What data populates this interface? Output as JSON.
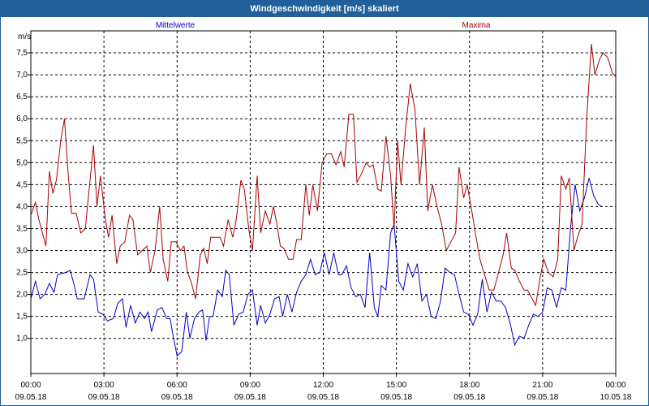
{
  "window": {
    "title": "Windgeschwindigkeit [m/s] skaliert"
  },
  "chart_data": {
    "type": "line",
    "title": "Windgeschwindigkeit [m/s] skaliert",
    "ylabel": "m/s",
    "xlabel": "",
    "ylim": [
      0.2,
      8.0
    ],
    "xlim": [
      0,
      24
    ],
    "grid": true,
    "legend": "top",
    "y_ticks": [
      "1,0",
      "1,5",
      "2,0",
      "2,5",
      "3,0",
      "3,5",
      "4,0",
      "4,5",
      "5,0",
      "5,5",
      "6,0",
      "6,5",
      "7,0",
      "7,5"
    ],
    "x_ticks": [
      {
        "time": "00:00",
        "date": "09.05.18"
      },
      {
        "time": "03:00",
        "date": "09.05.18"
      },
      {
        "time": "06:00",
        "date": "09.05.18"
      },
      {
        "time": "09:00",
        "date": "09.05.18"
      },
      {
        "time": "12:00",
        "date": "09.05.18"
      },
      {
        "time": "15:00",
        "date": "09.05.18"
      },
      {
        "time": "18:00",
        "date": "09.05.18"
      },
      {
        "time": "21:00",
        "date": "09.05.18"
      },
      {
        "time": "00:00",
        "date": "10.05.18"
      }
    ],
    "series": [
      {
        "name": "Mittelwerte",
        "color": "#0000cc",
        "points": [
          [
            0,
            1.9
          ],
          [
            0.2,
            2.3
          ],
          [
            0.4,
            1.9
          ],
          [
            0.6,
            2.0
          ],
          [
            0.8,
            2.25
          ],
          [
            1.0,
            2.05
          ],
          [
            1.15,
            2.45
          ],
          [
            1.5,
            2.5
          ],
          [
            1.7,
            2.55
          ],
          [
            1.85,
            2.25
          ],
          [
            2.0,
            1.9
          ],
          [
            2.3,
            1.9
          ],
          [
            2.55,
            2.45
          ],
          [
            2.7,
            2.35
          ],
          [
            2.9,
            1.6
          ],
          [
            3.1,
            1.55
          ],
          [
            3.3,
            1.4
          ],
          [
            3.55,
            1.45
          ],
          [
            3.75,
            1.8
          ],
          [
            3.95,
            1.9
          ],
          [
            4.1,
            1.25
          ],
          [
            4.3,
            1.75
          ],
          [
            4.5,
            1.35
          ],
          [
            4.7,
            1.6
          ],
          [
            4.9,
            1.45
          ],
          [
            5.05,
            1.6
          ],
          [
            5.2,
            1.15
          ],
          [
            5.45,
            1.65
          ],
          [
            5.65,
            1.7
          ],
          [
            5.85,
            1.45
          ],
          [
            6.0,
            1.45
          ],
          [
            6.15,
            1.0
          ],
          [
            6.3,
            0.6
          ],
          [
            6.5,
            0.7
          ],
          [
            6.7,
            1.6
          ],
          [
            6.85,
            1.0
          ],
          [
            7.05,
            1.45
          ],
          [
            7.25,
            1.6
          ],
          [
            7.4,
            1.65
          ],
          [
            7.55,
            0.95
          ],
          [
            7.7,
            1.5
          ],
          [
            7.85,
            1.5
          ],
          [
            8.05,
            2.1
          ],
          [
            8.25,
            1.95
          ],
          [
            8.4,
            2.55
          ],
          [
            8.55,
            2.45
          ],
          [
            8.75,
            1.3
          ],
          [
            8.95,
            1.55
          ],
          [
            9.15,
            1.6
          ],
          [
            9.35,
            2.0
          ],
          [
            9.55,
            2.1
          ],
          [
            9.75,
            1.3
          ],
          [
            9.9,
            1.75
          ],
          [
            10.1,
            1.35
          ],
          [
            10.3,
            1.55
          ],
          [
            10.5,
            1.9
          ],
          [
            10.7,
            1.95
          ],
          [
            10.85,
            1.5
          ],
          [
            11.05,
            2.0
          ],
          [
            11.25,
            1.6
          ],
          [
            11.45,
            2.05
          ],
          [
            11.65,
            2.3
          ],
          [
            11.85,
            2.45
          ],
          [
            12.05,
            2.8
          ],
          [
            12.25,
            2.45
          ],
          [
            12.45,
            2.5
          ],
          [
            12.65,
            2.95
          ],
          [
            12.85,
            2.45
          ],
          [
            13.05,
            2.95
          ],
          [
            13.25,
            2.45
          ],
          [
            13.4,
            2.45
          ],
          [
            13.6,
            2.65
          ],
          [
            13.8,
            2.15
          ],
          [
            14.0,
            1.95
          ],
          [
            14.2,
            2.0
          ],
          [
            14.4,
            1.7
          ],
          [
            14.6,
            2.95
          ],
          [
            14.8,
            1.7
          ],
          [
            14.95,
            1.5
          ],
          [
            15.1,
            2.2
          ],
          [
            15.3,
            2.1
          ],
          [
            15.5,
            3.4
          ],
          [
            15.65,
            3.6
          ],
          [
            15.85,
            2.3
          ],
          [
            16.05,
            2.1
          ],
          [
            16.25,
            2.7
          ],
          [
            16.45,
            2.4
          ],
          [
            16.65,
            2.7
          ],
          [
            16.85,
            1.85
          ],
          [
            17.05,
            2.0
          ],
          [
            17.25,
            1.5
          ],
          [
            17.45,
            1.45
          ],
          [
            17.65,
            1.85
          ],
          [
            17.85,
            2.6
          ],
          [
            18.05,
            2.5
          ],
          [
            18.25,
            2.45
          ],
          [
            18.45,
            2.0
          ],
          [
            18.65,
            1.6
          ],
          [
            18.85,
            1.55
          ],
          [
            19.05,
            1.3
          ],
          [
            19.25,
            1.55
          ],
          [
            19.45,
            2.35
          ],
          [
            19.65,
            1.6
          ],
          [
            19.85,
            2.05
          ],
          [
            20.05,
            1.85
          ],
          [
            20.25,
            1.85
          ],
          [
            20.45,
            1.7
          ],
          [
            20.65,
            1.35
          ],
          [
            20.85,
            0.85
          ],
          [
            21.05,
            1.05
          ],
          [
            21.25,
            1.0
          ],
          [
            21.45,
            1.3
          ],
          [
            21.65,
            1.55
          ],
          [
            21.85,
            1.5
          ],
          [
            22.05,
            1.6
          ],
          [
            22.25,
            2.15
          ],
          [
            22.45,
            2.1
          ],
          [
            22.65,
            1.7
          ],
          [
            22.85,
            2.15
          ],
          [
            23.05,
            2.1
          ],
          [
            23.25,
            3.5
          ],
          [
            23.45,
            4.5
          ],
          [
            23.65,
            3.9
          ],
          [
            23.85,
            4.2
          ],
          [
            24.05,
            4.65
          ],
          [
            24.25,
            4.25
          ],
          [
            24.45,
            4.05
          ],
          [
            24.6,
            4.0
          ]
        ]
      },
      {
        "name": "Maxima",
        "color": "#aa0000",
        "points": [
          [
            0,
            3.8
          ],
          [
            0.2,
            4.1
          ],
          [
            0.35,
            3.7
          ],
          [
            0.55,
            3.3
          ],
          [
            0.65,
            3.1
          ],
          [
            0.8,
            4.8
          ],
          [
            0.95,
            4.3
          ],
          [
            1.1,
            4.6
          ],
          [
            1.3,
            5.55
          ],
          [
            1.45,
            6.0
          ],
          [
            1.6,
            4.8
          ],
          [
            1.75,
            3.85
          ],
          [
            1.95,
            3.85
          ],
          [
            2.15,
            3.4
          ],
          [
            2.35,
            3.5
          ],
          [
            2.55,
            4.6
          ],
          [
            2.7,
            5.4
          ],
          [
            2.85,
            4.0
          ],
          [
            3.0,
            4.7
          ],
          [
            3.2,
            3.75
          ],
          [
            3.35,
            3.3
          ],
          [
            3.5,
            3.8
          ],
          [
            3.7,
            2.7
          ],
          [
            3.85,
            3.1
          ],
          [
            4.05,
            3.2
          ],
          [
            4.25,
            3.8
          ],
          [
            4.4,
            3.7
          ],
          [
            4.6,
            2.9
          ],
          [
            4.8,
            3.0
          ],
          [
            5.0,
            3.1
          ],
          [
            5.15,
            2.5
          ],
          [
            5.35,
            3.0
          ],
          [
            5.55,
            4.0
          ],
          [
            5.7,
            2.8
          ],
          [
            5.9,
            2.3
          ],
          [
            6.05,
            3.2
          ],
          [
            6.25,
            3.2
          ],
          [
            6.45,
            3.0
          ],
          [
            6.6,
            3.1
          ],
          [
            6.75,
            2.5
          ],
          [
            6.9,
            2.3
          ],
          [
            7.1,
            1.9
          ],
          [
            7.3,
            2.9
          ],
          [
            7.45,
            3.05
          ],
          [
            7.6,
            2.7
          ],
          [
            7.75,
            3.3
          ],
          [
            7.95,
            3.3
          ],
          [
            8.15,
            3.3
          ],
          [
            8.3,
            3.1
          ],
          [
            8.5,
            3.7
          ],
          [
            8.7,
            3.3
          ],
          [
            8.85,
            3.7
          ],
          [
            9.05,
            4.6
          ],
          [
            9.2,
            4.4
          ],
          [
            9.4,
            3.45
          ],
          [
            9.55,
            3.0
          ],
          [
            9.75,
            4.7
          ],
          [
            9.9,
            3.4
          ],
          [
            10.1,
            3.9
          ],
          [
            10.3,
            3.6
          ],
          [
            10.45,
            4.0
          ],
          [
            10.6,
            3.6
          ],
          [
            10.75,
            3.1
          ],
          [
            10.9,
            3.05
          ],
          [
            11.1,
            2.8
          ],
          [
            11.3,
            2.8
          ],
          [
            11.45,
            3.25
          ],
          [
            11.65,
            3.25
          ],
          [
            11.85,
            4.5
          ],
          [
            12.0,
            3.8
          ],
          [
            12.15,
            4.5
          ],
          [
            12.35,
            3.9
          ],
          [
            12.55,
            5.0
          ],
          [
            12.75,
            5.2
          ],
          [
            12.95,
            5.2
          ],
          [
            13.15,
            4.95
          ],
          [
            13.35,
            5.25
          ],
          [
            13.5,
            4.9
          ],
          [
            13.7,
            6.1
          ],
          [
            13.9,
            6.1
          ],
          [
            14.05,
            4.55
          ],
          [
            14.25,
            4.75
          ],
          [
            14.45,
            5.0
          ],
          [
            14.6,
            4.9
          ],
          [
            14.75,
            4.95
          ],
          [
            14.95,
            4.4
          ],
          [
            15.1,
            4.35
          ],
          [
            15.3,
            5.6
          ],
          [
            15.5,
            4.7
          ],
          [
            15.65,
            3.5
          ],
          [
            15.8,
            5.5
          ],
          [
            15.95,
            4.5
          ],
          [
            16.15,
            5.8
          ],
          [
            16.35,
            6.8
          ],
          [
            16.55,
            6.2
          ],
          [
            16.75,
            4.5
          ],
          [
            16.95,
            5.8
          ],
          [
            17.1,
            3.9
          ],
          [
            17.3,
            4.5
          ],
          [
            17.5,
            4.0
          ],
          [
            17.7,
            3.6
          ],
          [
            17.9,
            3.0
          ],
          [
            18.1,
            3.2
          ],
          [
            18.3,
            3.4
          ],
          [
            18.45,
            4.9
          ],
          [
            18.65,
            4.2
          ],
          [
            18.8,
            4.5
          ],
          [
            19.0,
            3.9
          ],
          [
            19.15,
            3.4
          ],
          [
            19.35,
            2.8
          ],
          [
            19.55,
            2.45
          ],
          [
            19.75,
            2.1
          ],
          [
            19.95,
            2.1
          ],
          [
            20.15,
            2.5
          ],
          [
            20.35,
            2.9
          ],
          [
            20.5,
            3.4
          ],
          [
            20.7,
            2.6
          ],
          [
            20.85,
            2.55
          ],
          [
            21.05,
            2.3
          ],
          [
            21.25,
            2.1
          ],
          [
            21.4,
            2.1
          ],
          [
            21.6,
            1.9
          ],
          [
            21.75,
            1.75
          ],
          [
            21.95,
            2.4
          ],
          [
            22.1,
            2.8
          ],
          [
            22.3,
            2.5
          ],
          [
            22.5,
            2.4
          ],
          [
            22.7,
            2.8
          ],
          [
            22.85,
            4.7
          ],
          [
            23.05,
            4.4
          ],
          [
            23.2,
            4.65
          ],
          [
            23.4,
            3.0
          ],
          [
            23.55,
            3.3
          ],
          [
            23.75,
            3.6
          ],
          [
            23.95,
            6.0
          ],
          [
            24.15,
            7.7
          ],
          [
            24.3,
            7.0
          ],
          [
            24.5,
            7.35
          ],
          [
            24.65,
            7.5
          ],
          [
            24.85,
            7.4
          ],
          [
            25.05,
            7.05
          ],
          [
            25.2,
            6.95
          ]
        ]
      }
    ]
  }
}
